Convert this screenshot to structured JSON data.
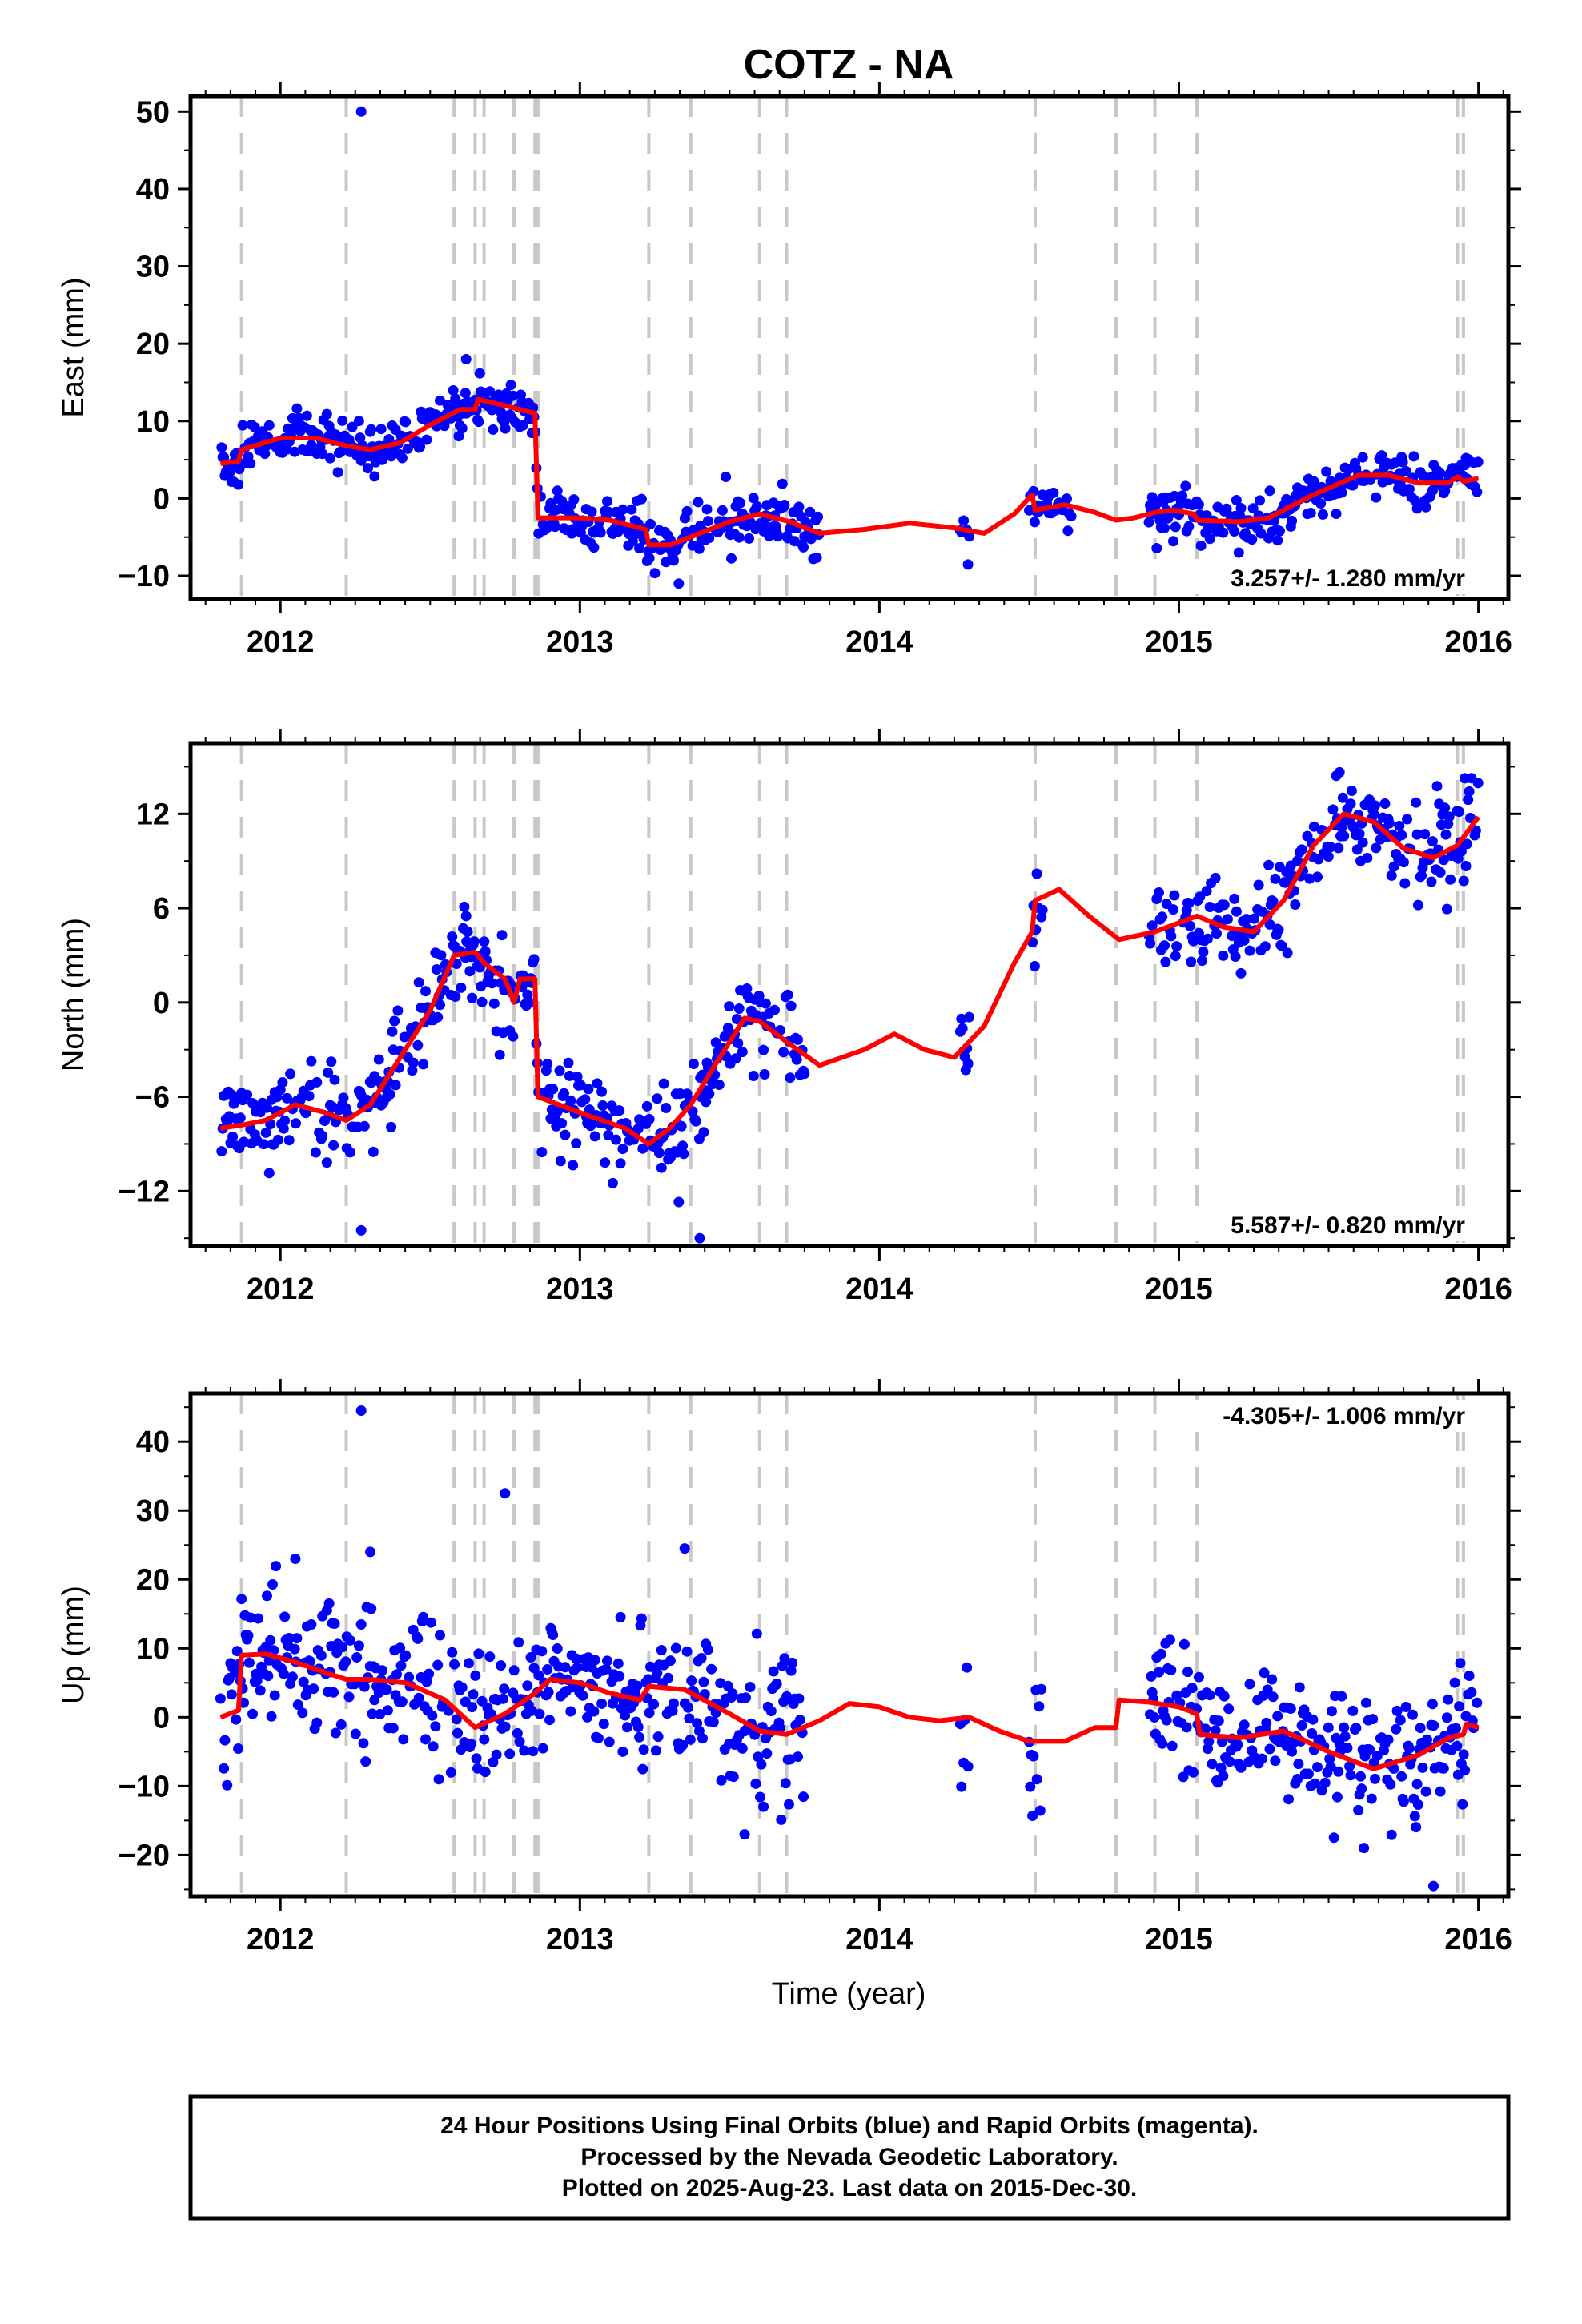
{
  "chart_data": {
    "type": "scatter",
    "title": "COTZ - NA",
    "xlabel": "Time (year)",
    "xlim": [
      2011.7,
      2016.1
    ],
    "x_ticks": [
      2012,
      2013,
      2014,
      2015,
      2016
    ],
    "x_tick_labels": [
      "2012",
      "2013",
      "2014",
      "2015",
      "2016"
    ],
    "legend": "none",
    "grid": false,
    "colors": {
      "final_orbits": "#0000ff",
      "model": "#ff0000",
      "steps": "#c8c8c8"
    },
    "step_epochs": [
      2011.87,
      2012.22,
      2012.58,
      2012.65,
      2012.68,
      2012.78,
      2012.85,
      2012.86,
      2013.23,
      2013.37,
      2013.6,
      2013.69,
      2014.52,
      2014.79,
      2014.92,
      2015.06,
      2015.93,
      2015.95
    ],
    "panels": [
      {
        "id": "east",
        "ylabel": "East (mm)",
        "ylim": [
          -13,
          52
        ],
        "y_ticks": [
          -10,
          0,
          10,
          20,
          30,
          40,
          50
        ],
        "y_tick_labels": [
          "−10",
          "0",
          "10",
          "20",
          "30",
          "40",
          "50"
        ],
        "rate_label": "3.257+/- 1.280 mm/yr",
        "rate_position": "bottom-right",
        "seed": 11,
        "data_segments": [
          [
            2011.8,
            2013.8
          ],
          [
            2014.27,
            2014.3
          ],
          [
            2014.5,
            2014.65
          ],
          [
            2014.9,
            2016.0
          ]
        ],
        "model": [
          [
            2011.8,
            4.5
          ],
          [
            2011.86,
            4.8
          ],
          [
            2011.87,
            6.3
          ],
          [
            2012.0,
            7.8
          ],
          [
            2012.12,
            7.8
          ],
          [
            2012.22,
            6.8
          ],
          [
            2012.3,
            6.3
          ],
          [
            2012.4,
            7.2
          ],
          [
            2012.5,
            9.5
          ],
          [
            2012.6,
            11.5
          ],
          [
            2012.65,
            11.5
          ],
          [
            2012.66,
            12.8
          ],
          [
            2012.75,
            12.0
          ],
          [
            2012.85,
            11.0
          ],
          [
            2012.86,
            -2.5
          ],
          [
            2013.0,
            -2.5
          ],
          [
            2013.1,
            -2.8
          ],
          [
            2013.22,
            -4.0
          ],
          [
            2013.23,
            -6.0
          ],
          [
            2013.3,
            -6.0
          ],
          [
            2013.4,
            -4.5
          ],
          [
            2013.5,
            -3.0
          ],
          [
            2013.6,
            -2.0
          ],
          [
            2013.7,
            -3.0
          ],
          [
            2013.8,
            -4.5
          ],
          [
            2013.95,
            -4.0
          ],
          [
            2014.1,
            -3.2
          ],
          [
            2014.25,
            -3.8
          ],
          [
            2014.35,
            -4.5
          ],
          [
            2014.45,
            -2.0
          ],
          [
            2014.51,
            0.5
          ],
          [
            2014.52,
            -1.5
          ],
          [
            2014.62,
            -0.8
          ],
          [
            2014.72,
            -1.8
          ],
          [
            2014.79,
            -2.8
          ],
          [
            2014.85,
            -2.5
          ],
          [
            2014.92,
            -1.8
          ],
          [
            2014.98,
            -1.5
          ],
          [
            2015.05,
            -2.0
          ],
          [
            2015.06,
            -2.8
          ],
          [
            2015.2,
            -3.0
          ],
          [
            2015.3,
            -2.5
          ],
          [
            2015.45,
            0.5
          ],
          [
            2015.6,
            3.0
          ],
          [
            2015.7,
            3.0
          ],
          [
            2015.8,
            2.0
          ],
          [
            2015.9,
            2.0
          ],
          [
            2015.93,
            2.8
          ],
          [
            2015.95,
            2.2
          ],
          [
            2016.0,
            2.6
          ]
        ],
        "outliers": [
          [
            2012.27,
            50.0
          ],
          [
            2012.62,
            18.0
          ],
          [
            2013.33,
            -11.0
          ],
          [
            2015.2,
            -7.0
          ]
        ]
      },
      {
        "id": "north",
        "ylabel": "North (mm)",
        "ylim": [
          -15.5,
          16.5
        ],
        "y_ticks": [
          -12,
          -6,
          0,
          6,
          12
        ],
        "y_tick_labels": [
          "−12",
          "−6",
          "0",
          "6",
          "12"
        ],
        "rate_label": "5.587+/- 0.820 mm/yr",
        "rate_position": "bottom-right",
        "seed": 23,
        "data_segments": [
          [
            2011.8,
            2013.75
          ],
          [
            2014.27,
            2014.3
          ],
          [
            2014.5,
            2014.55
          ],
          [
            2014.9,
            2016.0
          ]
        ],
        "model": [
          [
            2011.8,
            -8.0
          ],
          [
            2011.87,
            -7.8
          ],
          [
            2011.95,
            -7.5
          ],
          [
            2012.05,
            -6.5
          ],
          [
            2012.15,
            -7.0
          ],
          [
            2012.22,
            -7.5
          ],
          [
            2012.3,
            -6.5
          ],
          [
            2012.4,
            -3.5
          ],
          [
            2012.5,
            -0.5
          ],
          [
            2012.58,
            3.0
          ],
          [
            2012.65,
            3.2
          ],
          [
            2012.68,
            2.5
          ],
          [
            2012.75,
            1.5
          ],
          [
            2012.78,
            0.0
          ],
          [
            2012.8,
            1.5
          ],
          [
            2012.85,
            1.5
          ],
          [
            2012.86,
            -6.0
          ],
          [
            2013.0,
            -7.0
          ],
          [
            2013.15,
            -8.0
          ],
          [
            2013.23,
            -9.0
          ],
          [
            2013.3,
            -8.0
          ],
          [
            2013.37,
            -6.5
          ],
          [
            2013.45,
            -4.0
          ],
          [
            2013.55,
            -1.0
          ],
          [
            2013.6,
            -1.2
          ],
          [
            2013.69,
            -2.5
          ],
          [
            2013.8,
            -4.0
          ],
          [
            2013.95,
            -3.0
          ],
          [
            2014.05,
            -2.0
          ],
          [
            2014.15,
            -3.0
          ],
          [
            2014.25,
            -3.5
          ],
          [
            2014.35,
            -1.5
          ],
          [
            2014.45,
            2.5
          ],
          [
            2014.51,
            4.5
          ],
          [
            2014.52,
            6.5
          ],
          [
            2014.6,
            7.2
          ],
          [
            2014.7,
            5.5
          ],
          [
            2014.8,
            4.0
          ],
          [
            2014.92,
            4.5
          ],
          [
            2015.06,
            5.5
          ],
          [
            2015.15,
            4.8
          ],
          [
            2015.25,
            4.5
          ],
          [
            2015.35,
            6.5
          ],
          [
            2015.45,
            10.0
          ],
          [
            2015.55,
            12.0
          ],
          [
            2015.65,
            11.5
          ],
          [
            2015.75,
            9.8
          ],
          [
            2015.85,
            9.2
          ],
          [
            2015.93,
            10.0
          ],
          [
            2016.0,
            11.8
          ]
        ],
        "outliers": [
          [
            2012.27,
            -14.5
          ],
          [
            2013.33,
            -12.7
          ],
          [
            2013.4,
            -15.0
          ],
          [
            2012.62,
            5.5
          ]
        ]
      },
      {
        "id": "up",
        "ylabel": "Up (mm)",
        "ylim": [
          -26,
          47
        ],
        "y_ticks": [
          -20,
          -10,
          0,
          10,
          20,
          30,
          40
        ],
        "y_tick_labels": [
          "−20",
          "−10",
          "0",
          "10",
          "20",
          "30",
          "40"
        ],
        "rate_label": "-4.305+/- 1.006 mm/yr",
        "rate_position": "top-right",
        "seed": 37,
        "data_segments": [
          [
            2011.8,
            2013.75
          ],
          [
            2014.27,
            2014.3
          ],
          [
            2014.5,
            2014.55
          ],
          [
            2014.9,
            2016.0
          ]
        ],
        "model": [
          [
            2011.8,
            0.0
          ],
          [
            2011.86,
            1.0
          ],
          [
            2011.87,
            9.0
          ],
          [
            2011.95,
            9.2
          ],
          [
            2012.05,
            8.0
          ],
          [
            2012.15,
            6.5
          ],
          [
            2012.22,
            5.5
          ],
          [
            2012.3,
            5.5
          ],
          [
            2012.42,
            5.0
          ],
          [
            2012.55,
            2.5
          ],
          [
            2012.65,
            -1.5
          ],
          [
            2012.75,
            0.5
          ],
          [
            2012.85,
            3.5
          ],
          [
            2012.9,
            5.5
          ],
          [
            2013.0,
            5.0
          ],
          [
            2013.1,
            3.5
          ],
          [
            2013.2,
            2.5
          ],
          [
            2013.23,
            4.5
          ],
          [
            2013.35,
            4.0
          ],
          [
            2013.5,
            0.5
          ],
          [
            2013.6,
            -2.0
          ],
          [
            2013.69,
            -2.5
          ],
          [
            2013.8,
            -0.5
          ],
          [
            2013.9,
            2.0
          ],
          [
            2014.0,
            1.5
          ],
          [
            2014.1,
            0.0
          ],
          [
            2014.2,
            -0.5
          ],
          [
            2014.3,
            0.0
          ],
          [
            2014.4,
            -2.0
          ],
          [
            2014.5,
            -3.5
          ],
          [
            2014.62,
            -3.5
          ],
          [
            2014.72,
            -1.5
          ],
          [
            2014.79,
            -1.5
          ],
          [
            2014.8,
            2.5
          ],
          [
            2014.9,
            2.2
          ],
          [
            2015.0,
            1.5
          ],
          [
            2015.06,
            0.5
          ],
          [
            2015.07,
            -2.5
          ],
          [
            2015.2,
            -3.0
          ],
          [
            2015.35,
            -2.0
          ],
          [
            2015.5,
            -5.0
          ],
          [
            2015.65,
            -7.5
          ],
          [
            2015.8,
            -5.5
          ],
          [
            2015.9,
            -3.0
          ],
          [
            2015.95,
            -2.5
          ],
          [
            2015.96,
            -1.0
          ],
          [
            2016.0,
            -1.5
          ]
        ],
        "outliers": [
          [
            2012.27,
            44.5
          ],
          [
            2012.75,
            32.5
          ],
          [
            2013.35,
            24.5
          ],
          [
            2012.3,
            24.0
          ],
          [
            2012.05,
            23.0
          ],
          [
            2015.85,
            -24.5
          ],
          [
            2013.55,
            -17.0
          ]
        ]
      }
    ]
  },
  "footer": {
    "line1": "24 Hour Positions Using Final Orbits (blue) and Rapid Orbits (magenta).",
    "line2": "Processed by the Nevada Geodetic Laboratory.",
    "line3": "Plotted on 2025-Aug-23. Last data on 2015-Dec-30."
  }
}
